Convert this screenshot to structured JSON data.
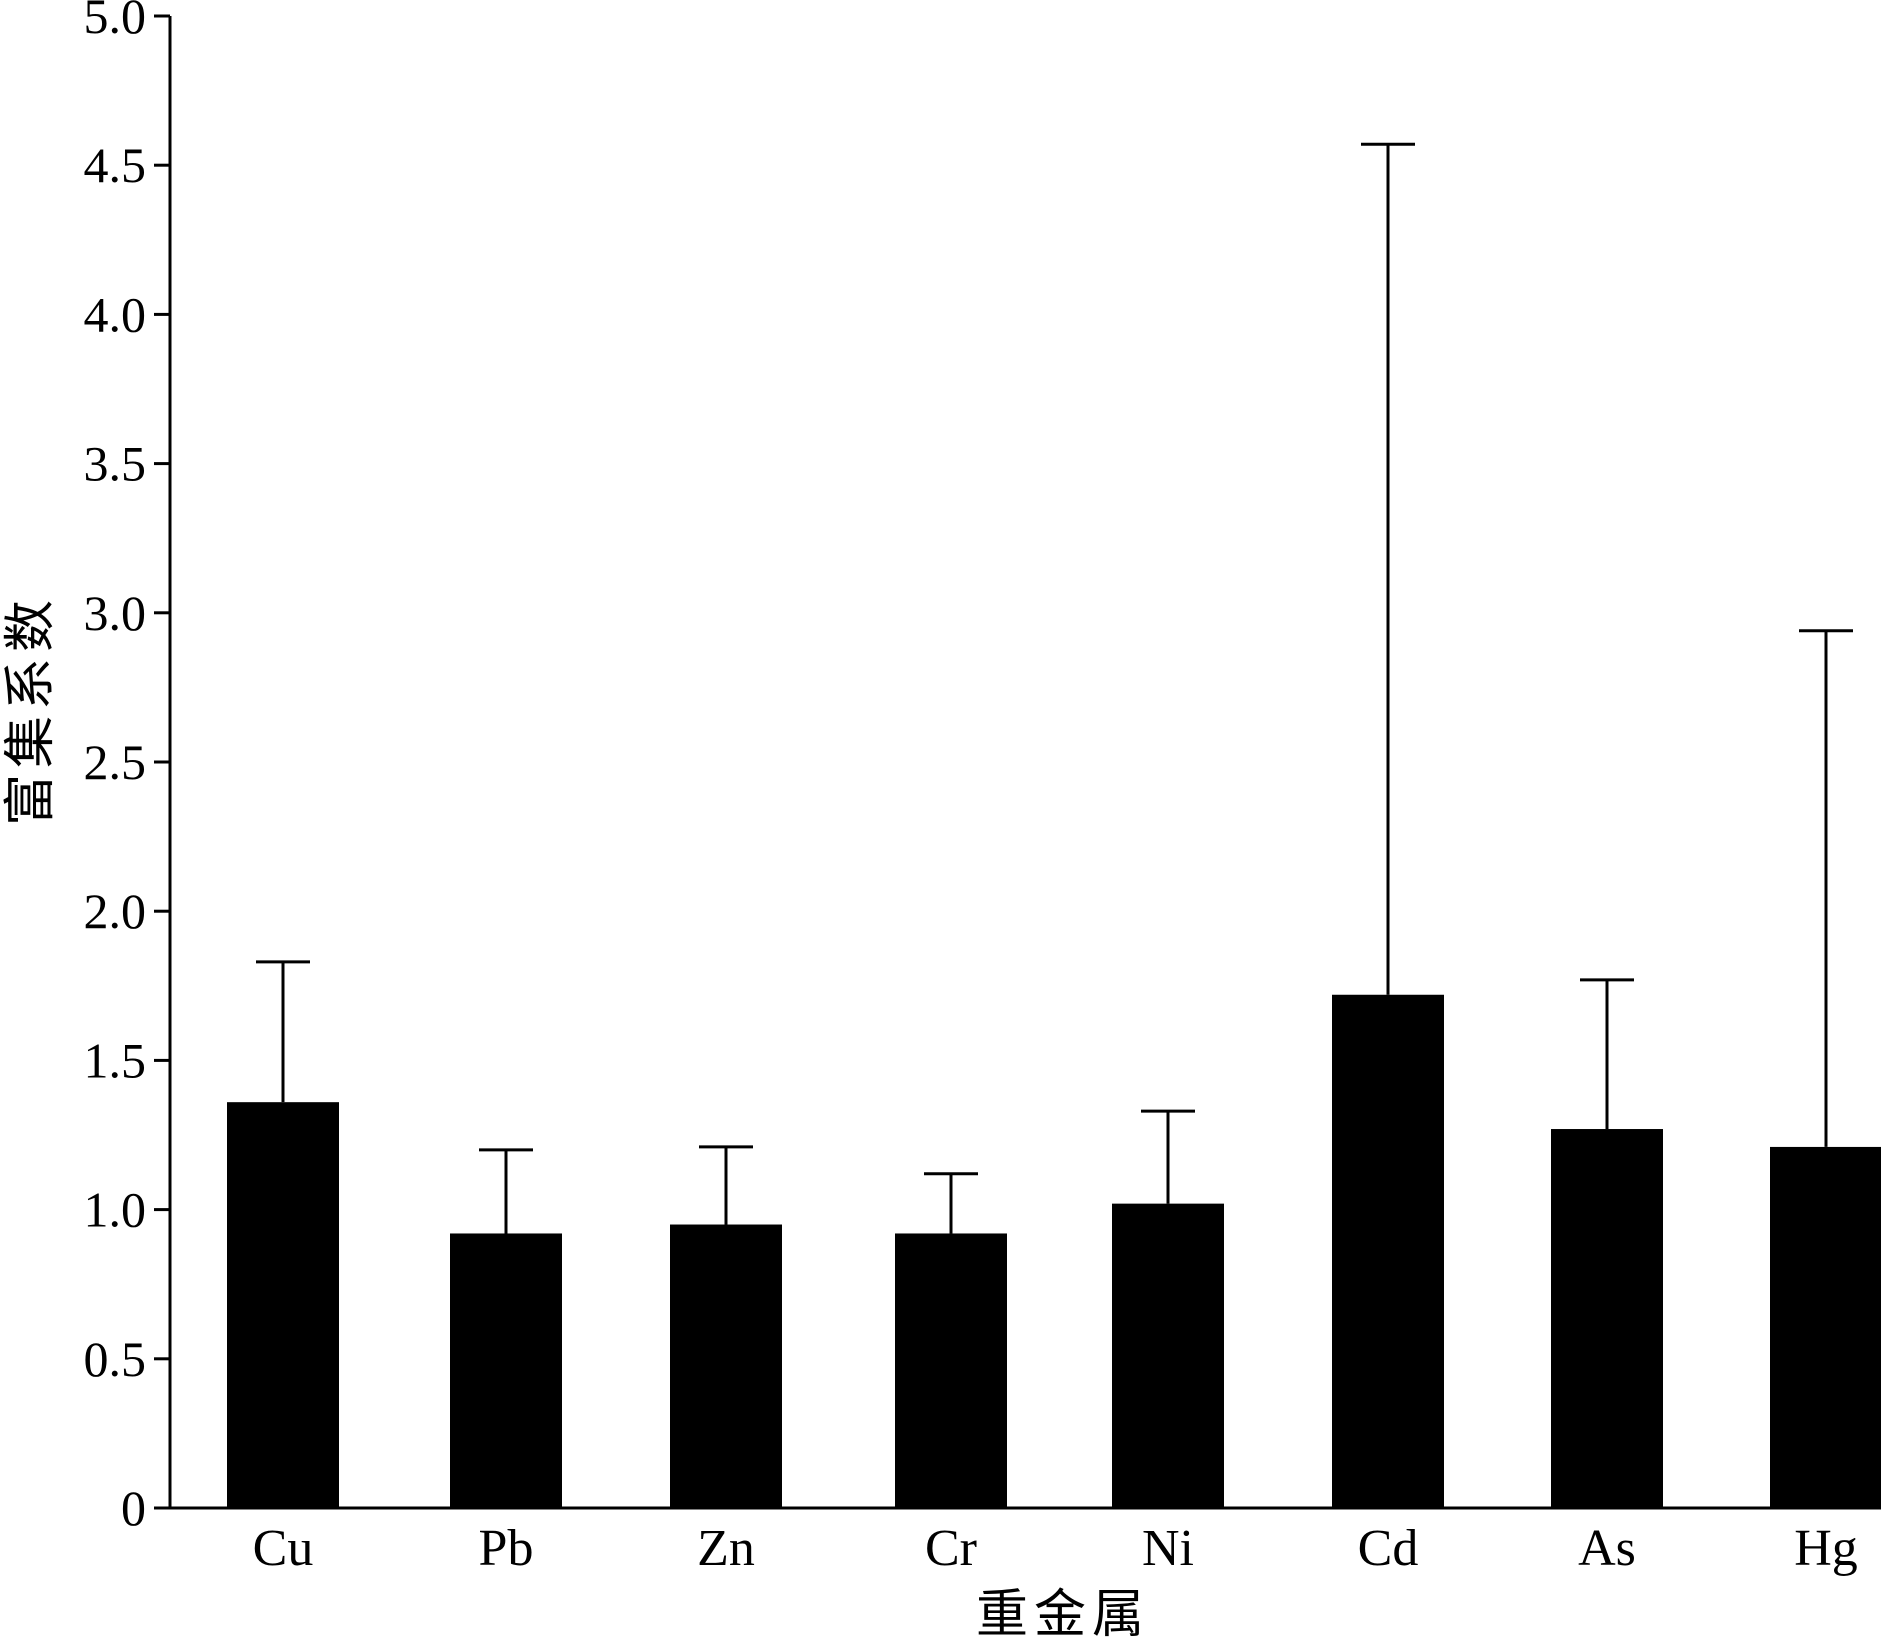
{
  "chart_data": {
    "type": "bar",
    "categories": [
      "Cu",
      "Pb",
      "Zn",
      "Cr",
      "Ni",
      "Cd",
      "As",
      "Hg"
    ],
    "values": [
      1.36,
      0.92,
      0.95,
      0.92,
      1.02,
      1.72,
      1.27,
      1.21
    ],
    "error_upper": [
      1.83,
      1.2,
      1.21,
      1.12,
      1.33,
      4.57,
      1.77,
      2.94
    ],
    "xlabel": "重金属",
    "ylabel": "富集系数",
    "ylim": [
      0,
      5.0
    ],
    "yticks": [
      "0",
      "0.5",
      "1.0",
      "1.5",
      "2.0",
      "2.5",
      "3.0",
      "3.5",
      "4.0",
      "4.5",
      "5.0"
    ],
    "ytick_values": [
      0,
      0.5,
      1.0,
      1.5,
      2.0,
      2.5,
      3.0,
      3.5,
      4.0,
      4.5,
      5.0
    ],
    "bar_color": "#000000",
    "grid": false,
    "legend": "none"
  }
}
